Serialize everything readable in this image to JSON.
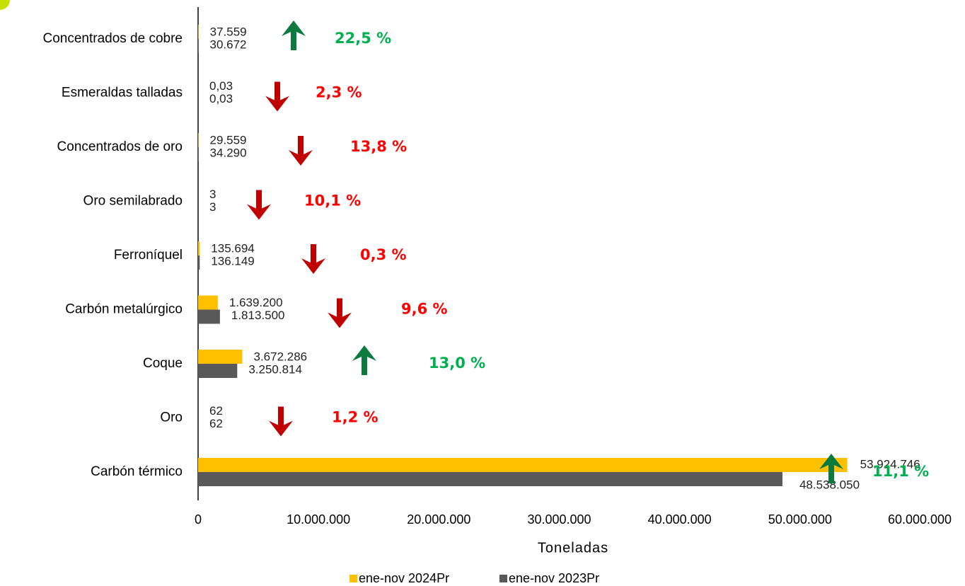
{
  "chart_data": {
    "type": "hbar",
    "categories": [
      "Concentrados de cobre",
      "Esmeraldas talladas",
      "Concentrados de oro",
      "Oro semilabrado",
      "Ferroníquel",
      "Carbón metalúrgico",
      "Coque",
      "Oro",
      "Carbón térmico"
    ],
    "series": [
      {
        "name": "ene-nov 2024Pr",
        "color": "#ffc000",
        "values": [
          37559,
          0.03,
          29559,
          3,
          135694,
          1639200,
          3672286,
          62,
          53924746
        ],
        "value_labels": [
          "37.559",
          "0,03",
          "29.559",
          "3",
          "135.694",
          "1.639.200",
          "3.672.286",
          "62",
          "53.924.746"
        ]
      },
      {
        "name": "ene-nov 2023Pr",
        "color": "#595959",
        "values": [
          30672,
          0.03,
          34290,
          3,
          136149,
          1813500,
          3250814,
          62,
          48538050
        ],
        "value_labels": [
          "30.672",
          "0,03",
          "34.290",
          "3",
          "136.149",
          "1.813.500",
          "3.250.814",
          "62",
          "48.538.050"
        ]
      }
    ],
    "changes": [
      {
        "label": "22,5 %",
        "direction": "up",
        "color": "#00b050"
      },
      {
        "label": "2,3 %",
        "direction": "down",
        "color": "#ff0000"
      },
      {
        "label": "13,8 %",
        "direction": "down",
        "color": "#ff0000"
      },
      {
        "label": "10,1 %",
        "direction": "down",
        "color": "#ff0000"
      },
      {
        "label": "0,3 %",
        "direction": "down",
        "color": "#ff0000"
      },
      {
        "label": "9,6 %",
        "direction": "down",
        "color": "#ff0000"
      },
      {
        "label": "13,0 %",
        "direction": "up",
        "color": "#00b050"
      },
      {
        "label": "1,2 %",
        "direction": "down",
        "color": "#ff0000"
      },
      {
        "label": "11,1 %",
        "direction": "up",
        "color": "#00b050"
      }
    ],
    "xlabel": "Toneladas",
    "xlim": [
      0,
      60000000
    ],
    "xticks": [
      0,
      {
        "value": 10000000,
        "label": "10.000.000"
      },
      {
        "value": 20000000,
        "label": "20.000.000"
      },
      {
        "value": 30000000,
        "label": "30.000.000"
      },
      {
        "value": 40000000,
        "label": "40.000.000"
      },
      {
        "value": 50000000,
        "label": "50.000.000"
      },
      {
        "value": 60000000,
        "label": "60.000.000"
      }
    ],
    "legend": "bottom"
  }
}
